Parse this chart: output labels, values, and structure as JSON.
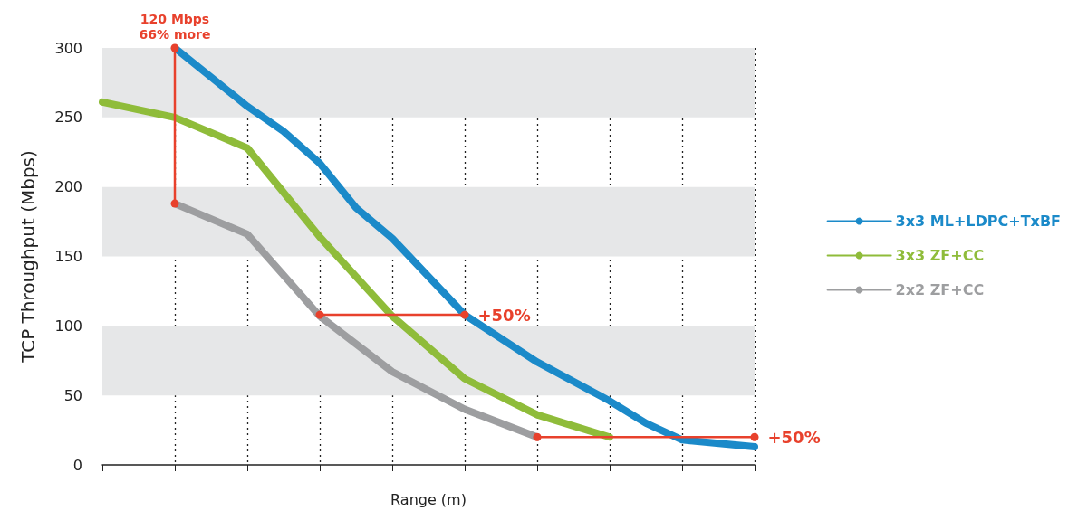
{
  "chart_data": {
    "type": "line",
    "xlabel": "Range (m)",
    "ylabel": "TCP Throughput (Mbps)",
    "categories": [
      null,
      null,
      null,
      null,
      null,
      null,
      null,
      null,
      null,
      null,
      null,
      null,
      null,
      null,
      null,
      null,
      null,
      null,
      null
    ],
    "ylim": [
      0,
      300
    ],
    "yticks": [
      0,
      50,
      100,
      150,
      200,
      250,
      300
    ],
    "grid": "x",
    "legend": "right",
    "line_style": "solid",
    "bands": [
      {
        "axis": "y",
        "from": 50,
        "to": 100,
        "color": "#e6e7e8"
      },
      {
        "axis": "y",
        "from": 150,
        "to": 200,
        "color": "#e6e7e8"
      },
      {
        "axis": "y",
        "from": 250,
        "to": 300,
        "color": "#e6e7e8"
      }
    ],
    "series": [
      {
        "name": "3x3 ML+LDPC+TxBF",
        "color": "#1b8ac9",
        "marker": "none",
        "values": [
          null,
          null,
          300,
          null,
          258,
          240,
          217,
          185,
          163,
          null,
          108,
          null,
          74,
          null,
          46,
          30,
          18,
          null,
          13
        ]
      },
      {
        "name": "3x3 ZF+CC",
        "color": "#8fbc3a",
        "marker": "none",
        "values": [
          261,
          null,
          250,
          null,
          228,
          null,
          164,
          null,
          107,
          null,
          62,
          null,
          36,
          null,
          20,
          null,
          null,
          null,
          null
        ]
      },
      {
        "name": "2x2 ZF+CC",
        "color": "#9d9ea0",
        "marker": "none",
        "values": [
          null,
          null,
          188,
          null,
          166,
          null,
          107,
          null,
          67,
          null,
          40,
          null,
          20,
          null,
          null,
          null,
          null,
          null,
          null
        ]
      },
      {
        "color": "#e8412c",
        "marker": "circle",
        "values": [
          null,
          null,
          null,
          null,
          null,
          null,
          108,
          null,
          null,
          null,
          108,
          null,
          null,
          null,
          null,
          null,
          null,
          null,
          null
        ]
      },
      {
        "color": "#e8412c",
        "marker": "circle",
        "values": [
          null,
          null,
          null,
          null,
          null,
          null,
          null,
          null,
          null,
          null,
          null,
          null,
          20,
          null,
          null,
          null,
          null,
          null,
          20
        ]
      }
    ],
    "annotations": [
      "120 Mbps\n66% more",
      "+50%",
      "+50%"
    ]
  }
}
